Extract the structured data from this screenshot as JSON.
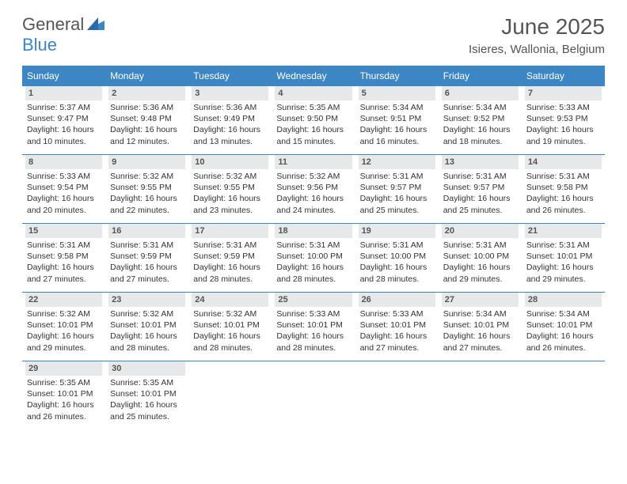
{
  "logo": {
    "text_general": "General",
    "text_blue": "Blue"
  },
  "title": "June 2025",
  "location": "Isieres, Wallonia, Belgium",
  "colors": {
    "header_bg": "#3d86c6",
    "header_text": "#ffffff",
    "daynum_bg": "#e7e8e9",
    "week_divider": "#3d86c6",
    "body_text": "#333333",
    "title_text": "#555555",
    "logo_gray": "#777777",
    "logo_blue": "#3d86c6"
  },
  "layout": {
    "columns": 7,
    "cell_font_size_pt": 10.5,
    "daynum_font_size_pt": 11,
    "dayhead_font_size_pt": 12,
    "title_font_size_pt": 28,
    "location_font_size_pt": 15
  },
  "day_headers": [
    "Sunday",
    "Monday",
    "Tuesday",
    "Wednesday",
    "Thursday",
    "Friday",
    "Saturday"
  ],
  "weeks": [
    [
      {
        "n": "1",
        "sunrise": "Sunrise: 5:37 AM",
        "sunset": "Sunset: 9:47 PM",
        "dl1": "Daylight: 16 hours",
        "dl2": "and 10 minutes."
      },
      {
        "n": "2",
        "sunrise": "Sunrise: 5:36 AM",
        "sunset": "Sunset: 9:48 PM",
        "dl1": "Daylight: 16 hours",
        "dl2": "and 12 minutes."
      },
      {
        "n": "3",
        "sunrise": "Sunrise: 5:36 AM",
        "sunset": "Sunset: 9:49 PM",
        "dl1": "Daylight: 16 hours",
        "dl2": "and 13 minutes."
      },
      {
        "n": "4",
        "sunrise": "Sunrise: 5:35 AM",
        "sunset": "Sunset: 9:50 PM",
        "dl1": "Daylight: 16 hours",
        "dl2": "and 15 minutes."
      },
      {
        "n": "5",
        "sunrise": "Sunrise: 5:34 AM",
        "sunset": "Sunset: 9:51 PM",
        "dl1": "Daylight: 16 hours",
        "dl2": "and 16 minutes."
      },
      {
        "n": "6",
        "sunrise": "Sunrise: 5:34 AM",
        "sunset": "Sunset: 9:52 PM",
        "dl1": "Daylight: 16 hours",
        "dl2": "and 18 minutes."
      },
      {
        "n": "7",
        "sunrise": "Sunrise: 5:33 AM",
        "sunset": "Sunset: 9:53 PM",
        "dl1": "Daylight: 16 hours",
        "dl2": "and 19 minutes."
      }
    ],
    [
      {
        "n": "8",
        "sunrise": "Sunrise: 5:33 AM",
        "sunset": "Sunset: 9:54 PM",
        "dl1": "Daylight: 16 hours",
        "dl2": "and 20 minutes."
      },
      {
        "n": "9",
        "sunrise": "Sunrise: 5:32 AM",
        "sunset": "Sunset: 9:55 PM",
        "dl1": "Daylight: 16 hours",
        "dl2": "and 22 minutes."
      },
      {
        "n": "10",
        "sunrise": "Sunrise: 5:32 AM",
        "sunset": "Sunset: 9:55 PM",
        "dl1": "Daylight: 16 hours",
        "dl2": "and 23 minutes."
      },
      {
        "n": "11",
        "sunrise": "Sunrise: 5:32 AM",
        "sunset": "Sunset: 9:56 PM",
        "dl1": "Daylight: 16 hours",
        "dl2": "and 24 minutes."
      },
      {
        "n": "12",
        "sunrise": "Sunrise: 5:31 AM",
        "sunset": "Sunset: 9:57 PM",
        "dl1": "Daylight: 16 hours",
        "dl2": "and 25 minutes."
      },
      {
        "n": "13",
        "sunrise": "Sunrise: 5:31 AM",
        "sunset": "Sunset: 9:57 PM",
        "dl1": "Daylight: 16 hours",
        "dl2": "and 25 minutes."
      },
      {
        "n": "14",
        "sunrise": "Sunrise: 5:31 AM",
        "sunset": "Sunset: 9:58 PM",
        "dl1": "Daylight: 16 hours",
        "dl2": "and 26 minutes."
      }
    ],
    [
      {
        "n": "15",
        "sunrise": "Sunrise: 5:31 AM",
        "sunset": "Sunset: 9:58 PM",
        "dl1": "Daylight: 16 hours",
        "dl2": "and 27 minutes."
      },
      {
        "n": "16",
        "sunrise": "Sunrise: 5:31 AM",
        "sunset": "Sunset: 9:59 PM",
        "dl1": "Daylight: 16 hours",
        "dl2": "and 27 minutes."
      },
      {
        "n": "17",
        "sunrise": "Sunrise: 5:31 AM",
        "sunset": "Sunset: 9:59 PM",
        "dl1": "Daylight: 16 hours",
        "dl2": "and 28 minutes."
      },
      {
        "n": "18",
        "sunrise": "Sunrise: 5:31 AM",
        "sunset": "Sunset: 10:00 PM",
        "dl1": "Daylight: 16 hours",
        "dl2": "and 28 minutes."
      },
      {
        "n": "19",
        "sunrise": "Sunrise: 5:31 AM",
        "sunset": "Sunset: 10:00 PM",
        "dl1": "Daylight: 16 hours",
        "dl2": "and 28 minutes."
      },
      {
        "n": "20",
        "sunrise": "Sunrise: 5:31 AM",
        "sunset": "Sunset: 10:00 PM",
        "dl1": "Daylight: 16 hours",
        "dl2": "and 29 minutes."
      },
      {
        "n": "21",
        "sunrise": "Sunrise: 5:31 AM",
        "sunset": "Sunset: 10:01 PM",
        "dl1": "Daylight: 16 hours",
        "dl2": "and 29 minutes."
      }
    ],
    [
      {
        "n": "22",
        "sunrise": "Sunrise: 5:32 AM",
        "sunset": "Sunset: 10:01 PM",
        "dl1": "Daylight: 16 hours",
        "dl2": "and 29 minutes."
      },
      {
        "n": "23",
        "sunrise": "Sunrise: 5:32 AM",
        "sunset": "Sunset: 10:01 PM",
        "dl1": "Daylight: 16 hours",
        "dl2": "and 28 minutes."
      },
      {
        "n": "24",
        "sunrise": "Sunrise: 5:32 AM",
        "sunset": "Sunset: 10:01 PM",
        "dl1": "Daylight: 16 hours",
        "dl2": "and 28 minutes."
      },
      {
        "n": "25",
        "sunrise": "Sunrise: 5:33 AM",
        "sunset": "Sunset: 10:01 PM",
        "dl1": "Daylight: 16 hours",
        "dl2": "and 28 minutes."
      },
      {
        "n": "26",
        "sunrise": "Sunrise: 5:33 AM",
        "sunset": "Sunset: 10:01 PM",
        "dl1": "Daylight: 16 hours",
        "dl2": "and 27 minutes."
      },
      {
        "n": "27",
        "sunrise": "Sunrise: 5:34 AM",
        "sunset": "Sunset: 10:01 PM",
        "dl1": "Daylight: 16 hours",
        "dl2": "and 27 minutes."
      },
      {
        "n": "28",
        "sunrise": "Sunrise: 5:34 AM",
        "sunset": "Sunset: 10:01 PM",
        "dl1": "Daylight: 16 hours",
        "dl2": "and 26 minutes."
      }
    ],
    [
      {
        "n": "29",
        "sunrise": "Sunrise: 5:35 AM",
        "sunset": "Sunset: 10:01 PM",
        "dl1": "Daylight: 16 hours",
        "dl2": "and 26 minutes."
      },
      {
        "n": "30",
        "sunrise": "Sunrise: 5:35 AM",
        "sunset": "Sunset: 10:01 PM",
        "dl1": "Daylight: 16 hours",
        "dl2": "and 25 minutes."
      },
      null,
      null,
      null,
      null,
      null
    ]
  ]
}
